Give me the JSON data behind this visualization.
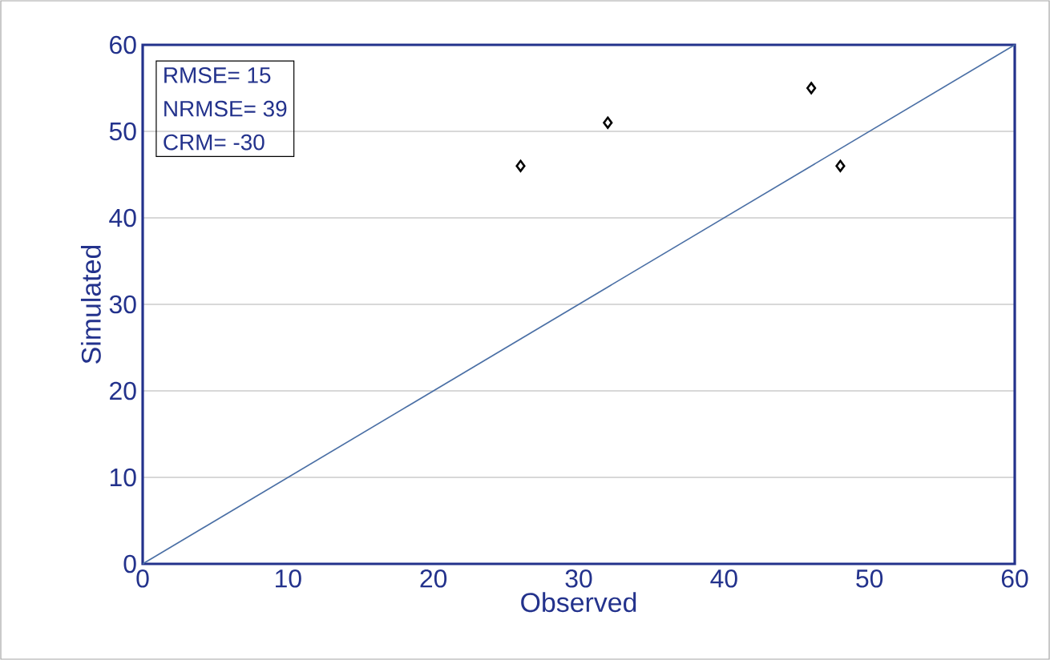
{
  "chart_data": {
    "type": "scatter",
    "xlabel": "Observed",
    "ylabel": "Simulated",
    "annotations": [
      "RMSE= 15",
      "NRMSE= 39",
      "CRM= -30"
    ],
    "xlim": [
      0,
      60
    ],
    "ylim": [
      0,
      60
    ],
    "xticks": [
      0,
      10,
      20,
      30,
      40,
      50,
      60
    ],
    "yticks": [
      0,
      10,
      20,
      30,
      40,
      50,
      60
    ],
    "grid": "y",
    "series": [
      {
        "color": "#000000",
        "marker": "diamond",
        "x": [
          26,
          32,
          46,
          48
        ],
        "values": [
          46,
          51,
          55,
          46
        ]
      },
      {
        "type": "line",
        "color": "#4a6fa5",
        "marker": "none",
        "line_style": "solid",
        "x": [
          0,
          60
        ],
        "values": [
          0,
          60
        ]
      }
    ]
  }
}
